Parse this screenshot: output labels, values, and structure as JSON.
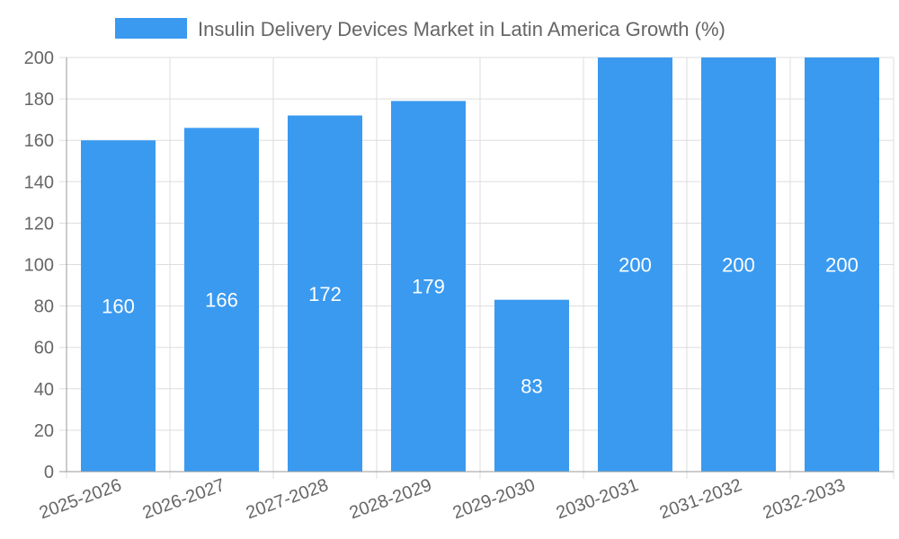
{
  "chart_data": {
    "type": "bar",
    "title": "",
    "xlabel": "",
    "ylabel": "",
    "categories": [
      "2025-2026",
      "2026-2027",
      "2027-2028",
      "2028-2029",
      "2029-2030",
      "2030-2031",
      "2031-2032",
      "2032-2033"
    ],
    "series": [
      {
        "name": "Insulin Delivery Devices Market in Latin America Growth (%)",
        "values": [
          160,
          166,
          172,
          179,
          83,
          200,
          200,
          200
        ],
        "color": "#3a9af0"
      }
    ],
    "ylim": [
      0,
      200
    ],
    "yticks": [
      0,
      20,
      40,
      60,
      80,
      100,
      120,
      140,
      160,
      180,
      200
    ],
    "grid": true,
    "legend_position": "top-center"
  },
  "colors": {
    "bar": "#3a9af0",
    "grid": "#dddddd",
    "axis": "#999999",
    "text": "#666666"
  }
}
